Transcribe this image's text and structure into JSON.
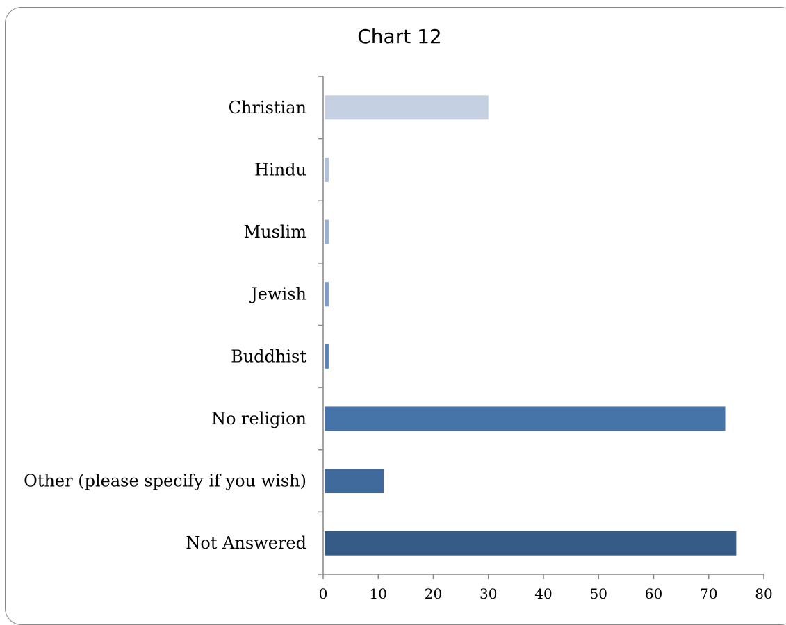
{
  "chart_data": {
    "type": "bar",
    "orientation": "horizontal",
    "title": "Chart 12",
    "categories": [
      "Christian",
      "Hindu",
      "Muslim",
      "Jewish",
      "Buddhist",
      "No religion",
      "Other (please specify if you wish)",
      "Not Answered"
    ],
    "values": [
      30,
      1,
      1,
      1,
      1,
      73,
      11,
      75
    ],
    "xlim": [
      0,
      80
    ],
    "x_ticks": [
      0,
      10,
      20,
      30,
      40,
      50,
      60,
      70,
      80
    ],
    "grid": false,
    "legend": "none",
    "bar_colors": [
      "#c6d0e3",
      "#b0c0dc",
      "#9aafd3",
      "#7f9ac9",
      "#5b82bb",
      "#4674a9",
      "#3f6a9b",
      "#365b86"
    ]
  }
}
